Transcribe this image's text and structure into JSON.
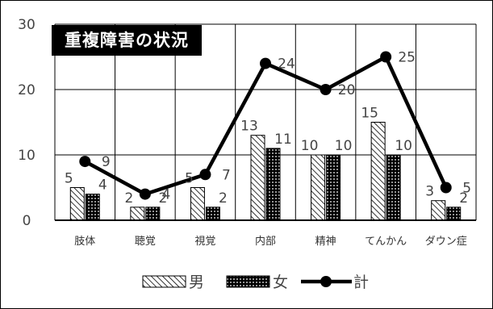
{
  "chart_data": {
    "type": "bar",
    "title": "重複障害の状況",
    "categories": [
      "肢体",
      "聴覚",
      "視覚",
      "内部",
      "精神",
      "てんかん",
      "ダウン症"
    ],
    "series": [
      {
        "name": "男",
        "kind": "bar",
        "pattern": "diagonal-hatch",
        "values": [
          5,
          2,
          5,
          13,
          10,
          15,
          3
        ]
      },
      {
        "name": "女",
        "kind": "bar",
        "pattern": "dotted-dark",
        "values": [
          4,
          2,
          2,
          11,
          10,
          10,
          2
        ]
      },
      {
        "name": "計",
        "kind": "line",
        "marker": "circle",
        "values": [
          9,
          4,
          7,
          24,
          20,
          25,
          5
        ]
      }
    ],
    "ylim": [
      0,
      30
    ],
    "yticks": [
      0,
      10,
      20,
      30
    ],
    "grid": true,
    "legend_position": "bottom",
    "colors": {
      "line": "#000000",
      "bar_male": "#ffffff",
      "bar_female": "#000000"
    }
  }
}
